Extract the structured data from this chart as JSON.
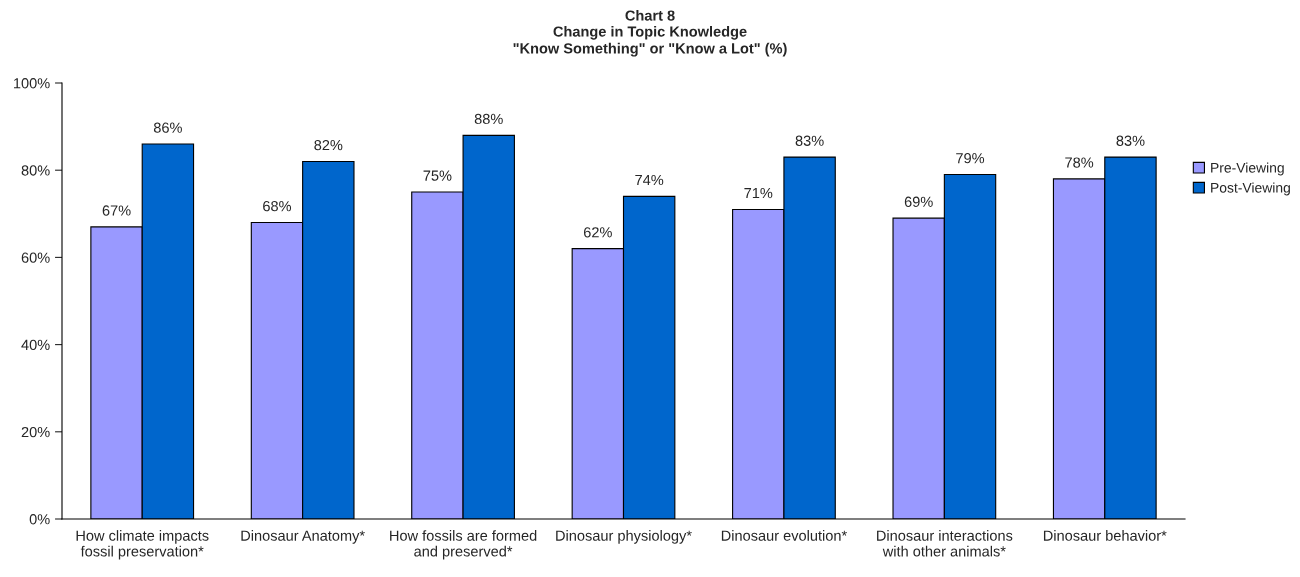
{
  "chart_data": {
    "type": "bar",
    "title": "Chart 8",
    "subtitle": "Change in Topic Knowledge\n\"Know Something\" or \"Know a Lot\" (%)",
    "categories": [
      "How climate impacts\nfossil preservation*",
      "Dinosaur Anatomy*",
      "How fossils are formed\nand preserved*",
      "Dinosaur physiology*",
      "Dinosaur evolution*",
      "Dinosaur interactions\nwith other animals*",
      "Dinosaur behavior*"
    ],
    "series": [
      {
        "name": "Pre-Viewing",
        "color": "#9999ff",
        "values": [
          67,
          68,
          75,
          62,
          71,
          69,
          78
        ],
        "value_labels": [
          "67%",
          "68%",
          "75%",
          "62%",
          "71%",
          "69%",
          "78%"
        ]
      },
      {
        "name": "Post-Viewing",
        "color": "#0066cc",
        "values": [
          86,
          82,
          88,
          74,
          83,
          79,
          83
        ],
        "value_labels": [
          "86%",
          "82%",
          "88%",
          "74%",
          "83%",
          "79%",
          "83%"
        ]
      }
    ],
    "ylim": [
      0,
      100
    ],
    "yticks": [
      {
        "value": 0,
        "label": "0%"
      },
      {
        "value": 20,
        "label": "20%"
      },
      {
        "value": 40,
        "label": "40%"
      },
      {
        "value": 60,
        "label": "60%"
      },
      {
        "value": 80,
        "label": "80%"
      },
      {
        "value": 100,
        "label": "100%"
      }
    ],
    "grid": false,
    "legend": "right"
  }
}
